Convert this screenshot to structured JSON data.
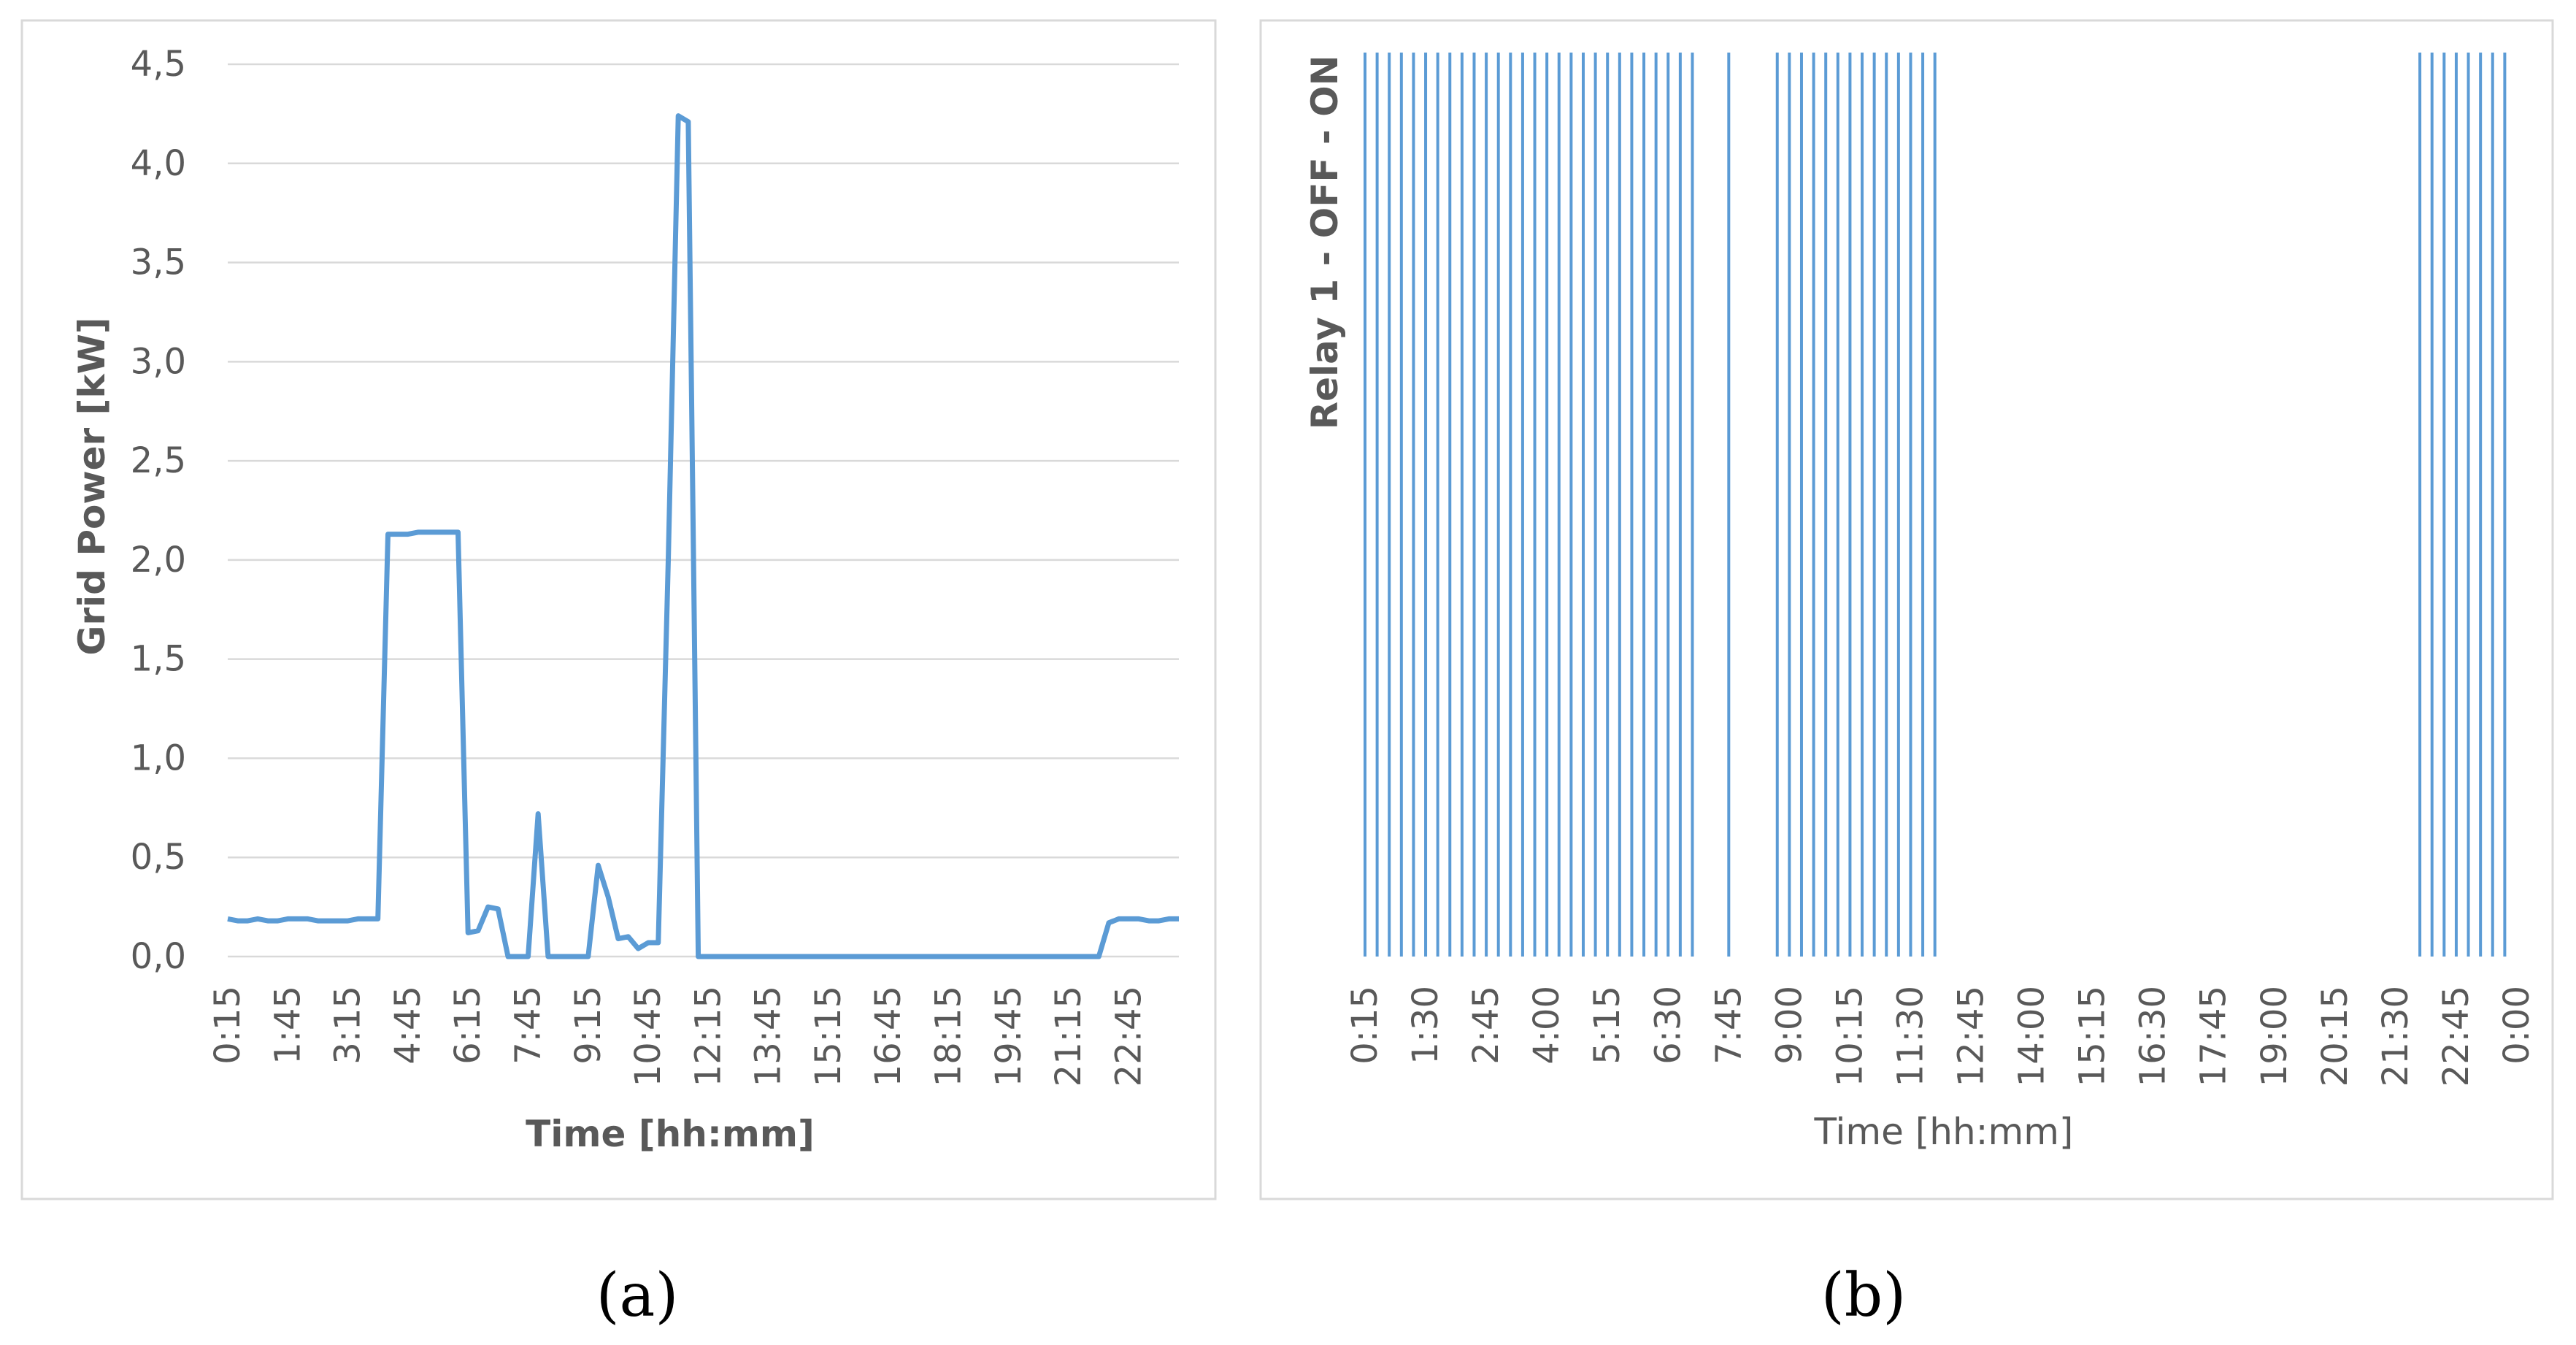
{
  "chart_data": [
    {
      "id": "a",
      "type": "line",
      "caption": "(a)",
      "title": "",
      "xlabel": "Time [hh:mm]",
      "ylabel": "Grid Power [kW]",
      "ylim": [
        0,
        4.5
      ],
      "yticks": [
        "0,0",
        "0,5",
        "1,0",
        "1,5",
        "2,0",
        "2,5",
        "3,0",
        "3,5",
        "4,0",
        "4,5"
      ],
      "xticks": [
        "0:15",
        "1:45",
        "3:15",
        "4:45",
        "6:15",
        "7:45",
        "9:15",
        "10:45",
        "12:15",
        "13:45",
        "15:15",
        "16:45",
        "18:15",
        "19:45",
        "21:15",
        "22:45"
      ],
      "grid": true,
      "line_color": "#5b9bd5",
      "series": [
        {
          "x": [
            "0:15",
            "0:30",
            "0:45",
            "1:00",
            "1:15",
            "1:30",
            "1:45",
            "2:00",
            "2:15",
            "2:30",
            "2:45",
            "3:00",
            "3:15",
            "3:30",
            "3:45",
            "4:00",
            "4:15",
            "4:30",
            "4:45",
            "5:00",
            "5:15",
            "5:30",
            "5:45",
            "6:00",
            "6:15",
            "6:30",
            "6:45",
            "7:00",
            "7:15",
            "7:30",
            "7:45",
            "8:00",
            "8:15",
            "8:30",
            "8:45",
            "9:00",
            "9:15",
            "9:30",
            "9:45",
            "10:00",
            "10:15",
            "10:30",
            "10:45",
            "11:00",
            "11:15",
            "11:30",
            "11:45",
            "12:00",
            "12:15",
            "12:30",
            "13:00",
            "14:00",
            "15:00",
            "16:00",
            "17:00",
            "18:00",
            "19:00",
            "20:00",
            "21:00",
            "21:45",
            "22:00",
            "22:15",
            "22:30",
            "22:45",
            "23:00",
            "23:15",
            "23:30",
            "23:45",
            "0:00"
          ],
          "values": [
            0.19,
            0.18,
            0.18,
            0.19,
            0.18,
            0.18,
            0.19,
            0.19,
            0.19,
            0.18,
            0.18,
            0.18,
            0.18,
            0.19,
            0.19,
            0.19,
            2.13,
            2.13,
            2.13,
            2.14,
            2.14,
            2.14,
            2.14,
            2.14,
            0.12,
            0.13,
            0.25,
            0.24,
            0.0,
            0.0,
            0.0,
            0.72,
            0.0,
            0.0,
            0.0,
            0.0,
            0.0,
            0.46,
            0.3,
            0.09,
            0.1,
            0.04,
            0.07,
            0.07,
            2.0,
            4.24,
            4.21,
            0.0,
            0.0,
            0.0,
            0.0,
            0.0,
            0.0,
            0.0,
            0.0,
            0.0,
            0.0,
            0.0,
            0.0,
            0.0,
            0.0,
            0.17,
            0.19,
            0.19,
            0.19,
            0.18,
            0.18,
            0.19,
            0.19
          ]
        }
      ]
    },
    {
      "id": "b",
      "type": "bar",
      "caption": "(b)",
      "title": "",
      "xlabel": "Time [hh:mm]",
      "ylabel": "Relay 1 - OFF - ON",
      "xticks": [
        "0:15",
        "1:30",
        "2:45",
        "4:00",
        "5:15",
        "6:30",
        "7:45",
        "9:00",
        "10:15",
        "11:30",
        "12:45",
        "14:00",
        "15:15",
        "16:30",
        "17:45",
        "19:00",
        "20:15",
        "21:30",
        "22:45",
        "0:00"
      ],
      "grid": false,
      "bar_color": "#5b9bd5",
      "on_intervals": [
        "0:15",
        "0:30",
        "0:45",
        "1:00",
        "1:15",
        "1:30",
        "1:45",
        "2:00",
        "2:15",
        "2:30",
        "2:45",
        "3:00",
        "3:15",
        "3:30",
        "3:45",
        "4:00",
        "4:15",
        "4:30",
        "4:45",
        "5:00",
        "5:15",
        "5:30",
        "5:45",
        "6:00",
        "6:15",
        "6:30",
        "6:45",
        "7:00",
        "7:45",
        "8:45",
        "9:00",
        "9:15",
        "9:30",
        "9:45",
        "10:00",
        "10:15",
        "10:30",
        "10:45",
        "11:00",
        "11:15",
        "11:30",
        "11:45",
        "12:00",
        "22:00",
        "22:15",
        "22:30",
        "22:45",
        "23:00",
        "23:15",
        "23:30",
        "23:45"
      ]
    }
  ]
}
